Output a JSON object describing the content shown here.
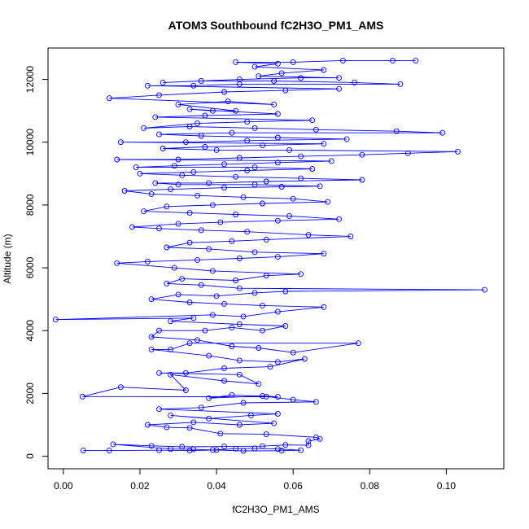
{
  "chart_data": {
    "type": "scatter",
    "title": "ATOM3 Southbound fC2H3O_PM1_AMS",
    "xlabel": "fC2H3O_PM1_AMS",
    "ylabel": "Altitude (m)",
    "xlim": [
      -0.004,
      0.115
    ],
    "ylim": [
      -400,
      13000
    ],
    "x_ticks": [
      0.0,
      0.02,
      0.04,
      0.06,
      0.08,
      0.1
    ],
    "x_tick_labels": [
      "0.00",
      "0.02",
      "0.04",
      "0.06",
      "0.08",
      "0.10"
    ],
    "y_ticks": [
      0,
      2000,
      4000,
      6000,
      8000,
      10000,
      12000
    ],
    "y_tick_labels": [
      "0",
      "2000",
      "4000",
      "6000",
      "8000",
      "10000",
      "12000"
    ],
    "grid": false,
    "legend": "none",
    "series_style": {
      "color": "#0000ff",
      "marker": "open-circle",
      "connected": true
    },
    "series": [
      {
        "points": [
          [
            0.0052,
            180
          ],
          [
            0.012,
            180
          ],
          [
            0.025,
            190
          ],
          [
            0.033,
            180
          ],
          [
            0.04,
            200
          ],
          [
            0.047,
            170
          ],
          [
            0.057,
            175
          ],
          [
            0.062,
            190
          ],
          [
            0.056,
            230
          ],
          [
            0.05,
            250
          ],
          [
            0.045,
            240
          ],
          [
            0.039,
            200
          ],
          [
            0.034,
            220
          ],
          [
            0.028,
            230
          ],
          [
            0.013,
            380
          ],
          [
            0.023,
            330
          ],
          [
            0.031,
            300
          ],
          [
            0.042,
            310
          ],
          [
            0.052,
            320
          ],
          [
            0.058,
            360
          ],
          [
            0.064,
            350
          ],
          [
            0.064,
            480
          ],
          [
            0.067,
            550
          ],
          [
            0.066,
            600
          ],
          [
            0.053,
            700
          ],
          [
            0.041,
            720
          ],
          [
            0.033,
            900
          ],
          [
            0.027,
            920
          ],
          [
            0.022,
            1000
          ],
          [
            0.034,
            1080
          ],
          [
            0.046,
            1000
          ],
          [
            0.055,
            1050
          ],
          [
            0.028,
            1300
          ],
          [
            0.038,
            1200
          ],
          [
            0.049,
            1300
          ],
          [
            0.056,
            1350
          ],
          [
            0.025,
            1500
          ],
          [
            0.036,
            1550
          ],
          [
            0.047,
            1700
          ],
          [
            0.066,
            1730
          ],
          [
            0.06,
            1800
          ],
          [
            0.053,
            1900
          ],
          [
            0.044,
            1950
          ],
          [
            0.038,
            1850
          ],
          [
            0.052,
            1920
          ],
          [
            0.056,
            1890
          ],
          [
            0.005,
            1900
          ],
          [
            0.015,
            2200
          ],
          [
            0.032,
            2100
          ],
          [
            0.028,
            2600
          ],
          [
            0.042,
            2400
          ],
          [
            0.051,
            2300
          ],
          [
            0.046,
            2600
          ],
          [
            0.025,
            2650
          ],
          [
            0.032,
            2650
          ],
          [
            0.042,
            2800
          ],
          [
            0.054,
            2850
          ],
          [
            0.063,
            3100
          ],
          [
            0.056,
            3000
          ],
          [
            0.046,
            3050
          ],
          [
            0.038,
            3200
          ],
          [
            0.023,
            3400
          ],
          [
            0.028,
            3400
          ],
          [
            0.033,
            3600
          ],
          [
            0.077,
            3600
          ],
          [
            0.06,
            3300
          ],
          [
            0.051,
            3450
          ],
          [
            0.044,
            3500
          ],
          [
            0.035,
            3700
          ],
          [
            0.023,
            3800
          ],
          [
            0.025,
            4000
          ],
          [
            0.037,
            4000
          ],
          [
            0.044,
            4100
          ],
          [
            0.052,
            4000
          ],
          [
            0.058,
            4150
          ],
          [
            0.046,
            4200
          ],
          [
            0.028,
            4300
          ],
          [
            0.034,
            4400
          ],
          [
            -0.002,
            4350
          ],
          [
            0.039,
            4500
          ],
          [
            0.047,
            4450
          ],
          [
            0.056,
            4600
          ],
          [
            0.068,
            4750
          ],
          [
            0.052,
            4800
          ],
          [
            0.042,
            4850
          ],
          [
            0.033,
            4900
          ],
          [
            0.023,
            5000
          ],
          [
            0.03,
            5150
          ],
          [
            0.04,
            5100
          ],
          [
            0.05,
            5200
          ],
          [
            0.058,
            5250
          ],
          [
            0.11,
            5300
          ],
          [
            0.046,
            5350
          ],
          [
            0.036,
            5450
          ],
          [
            0.027,
            5500
          ],
          [
            0.031,
            5650
          ],
          [
            0.045,
            5600
          ],
          [
            0.053,
            5750
          ],
          [
            0.062,
            5800
          ],
          [
            0.039,
            5900
          ],
          [
            0.029,
            6000
          ],
          [
            0.014,
            6150
          ],
          [
            0.022,
            6200
          ],
          [
            0.035,
            6250
          ],
          [
            0.046,
            6300
          ],
          [
            0.056,
            6350
          ],
          [
            0.068,
            6450
          ],
          [
            0.05,
            6500
          ],
          [
            0.038,
            6600
          ],
          [
            0.027,
            6650
          ],
          [
            0.033,
            6800
          ],
          [
            0.044,
            6850
          ],
          [
            0.053,
            6900
          ],
          [
            0.075,
            7000
          ],
          [
            0.064,
            7050
          ],
          [
            0.048,
            7150
          ],
          [
            0.036,
            7200
          ],
          [
            0.025,
            7250
          ],
          [
            0.018,
            7300
          ],
          [
            0.03,
            7400
          ],
          [
            0.041,
            7450
          ],
          [
            0.056,
            7500
          ],
          [
            0.072,
            7550
          ],
          [
            0.059,
            7650
          ],
          [
            0.045,
            7700
          ],
          [
            0.033,
            7750
          ],
          [
            0.021,
            7800
          ],
          [
            0.027,
            7950
          ],
          [
            0.039,
            8000
          ],
          [
            0.052,
            8050
          ],
          [
            0.069,
            8100
          ],
          [
            0.06,
            8200
          ],
          [
            0.047,
            8250
          ],
          [
            0.035,
            8300
          ],
          [
            0.023,
            8350
          ],
          [
            0.016,
            8450
          ],
          [
            0.028,
            8500
          ],
          [
            0.042,
            8550
          ],
          [
            0.057,
            8580
          ],
          [
            0.067,
            8600
          ],
          [
            0.05,
            8650
          ],
          [
            0.03,
            8650
          ],
          [
            0.024,
            8700
          ],
          [
            0.038,
            8700
          ],
          [
            0.053,
            8750
          ],
          [
            0.078,
            8800
          ],
          [
            0.062,
            8850
          ],
          [
            0.045,
            8900
          ],
          [
            0.031,
            8950
          ],
          [
            0.02,
            9000
          ],
          [
            0.034,
            9050
          ],
          [
            0.048,
            9100
          ],
          [
            0.065,
            9150
          ],
          [
            0.05,
            9200
          ],
          [
            0.019,
            9200
          ],
          [
            0.029,
            9250
          ],
          [
            0.042,
            9300
          ],
          [
            0.056,
            9350
          ],
          [
            0.07,
            9400
          ],
          [
            0.014,
            9450
          ],
          [
            0.03,
            9450
          ],
          [
            0.046,
            9500
          ],
          [
            0.062,
            9550
          ],
          [
            0.078,
            9600
          ],
          [
            0.09,
            9650
          ],
          [
            0.103,
            9700
          ],
          [
            0.059,
            9750
          ],
          [
            0.04,
            9750
          ],
          [
            0.026,
            9800
          ],
          [
            0.037,
            9850
          ],
          [
            0.052,
            9900
          ],
          [
            0.068,
            9950
          ],
          [
            0.015,
            10000
          ],
          [
            0.032,
            10000
          ],
          [
            0.048,
            10050
          ],
          [
            0.074,
            10100
          ],
          [
            0.056,
            10150
          ],
          [
            0.036,
            10200
          ],
          [
            0.025,
            10250
          ],
          [
            0.044,
            10300
          ],
          [
            0.099,
            10300
          ],
          [
            0.087,
            10350
          ],
          [
            0.066,
            10400
          ],
          [
            0.05,
            10450
          ],
          [
            0.033,
            10500
          ],
          [
            0.021,
            10450
          ],
          [
            0.035,
            10600
          ],
          [
            0.048,
            10650
          ],
          [
            0.065,
            10700
          ],
          [
            0.024,
            10800
          ],
          [
            0.037,
            10850
          ],
          [
            0.056,
            10900
          ],
          [
            0.033,
            11050
          ],
          [
            0.039,
            11000
          ],
          [
            0.045,
            11000
          ],
          [
            0.03,
            11200
          ],
          [
            0.043,
            11300
          ],
          [
            0.055,
            11200
          ],
          [
            0.012,
            11400
          ],
          [
            0.025,
            11500
          ],
          [
            0.042,
            11600
          ],
          [
            0.058,
            11650
          ],
          [
            0.072,
            11700
          ],
          [
            0.022,
            11800
          ],
          [
            0.034,
            11800
          ],
          [
            0.046,
            11850
          ],
          [
            0.088,
            11850
          ],
          [
            0.076,
            11900
          ],
          [
            0.055,
            11950
          ],
          [
            0.036,
            11950
          ],
          [
            0.026,
            11900
          ],
          [
            0.046,
            12000
          ],
          [
            0.062,
            12050
          ],
          [
            0.072,
            12050
          ],
          [
            0.051,
            12100
          ],
          [
            0.057,
            12200
          ],
          [
            0.068,
            12300
          ],
          [
            0.05,
            12400
          ],
          [
            0.056,
            12500
          ],
          [
            0.045,
            12550
          ],
          [
            0.06,
            12550
          ],
          [
            0.073,
            12600
          ],
          [
            0.086,
            12600
          ],
          [
            0.092,
            12600
          ]
        ]
      }
    ]
  }
}
